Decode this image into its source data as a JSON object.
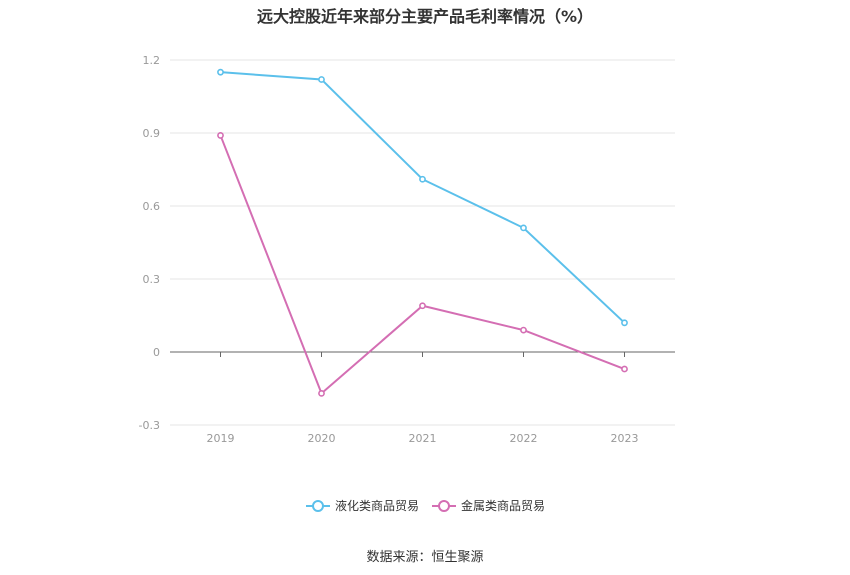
{
  "title": "远大控股近年来部分主要产品毛利率情况（%）",
  "source": "数据来源：恒生聚源",
  "chart_data": {
    "type": "line",
    "title": "远大控股近年来部分主要产品毛利率情况（%）",
    "xlabel": "",
    "ylabel": "",
    "categories": [
      "2019",
      "2020",
      "2021",
      "2022",
      "2023"
    ],
    "ylim": [
      -0.3,
      1.2
    ],
    "yticks": [
      -0.3,
      0,
      0.3,
      0.6,
      0.9,
      1.2
    ],
    "ytick_labels": [
      "-0.3",
      "0",
      "0.3",
      "0.6",
      "0.9",
      "1.2"
    ],
    "grid": true,
    "legend_position": "bottom",
    "series": [
      {
        "name": "液化类商品贸易",
        "color": "#5bc0eb",
        "values": [
          1.15,
          1.12,
          0.71,
          0.51,
          0.12
        ]
      },
      {
        "name": "金属类商品贸易",
        "color": "#d46eb3",
        "values": [
          0.89,
          -0.17,
          0.19,
          0.09,
          -0.07
        ]
      }
    ]
  }
}
